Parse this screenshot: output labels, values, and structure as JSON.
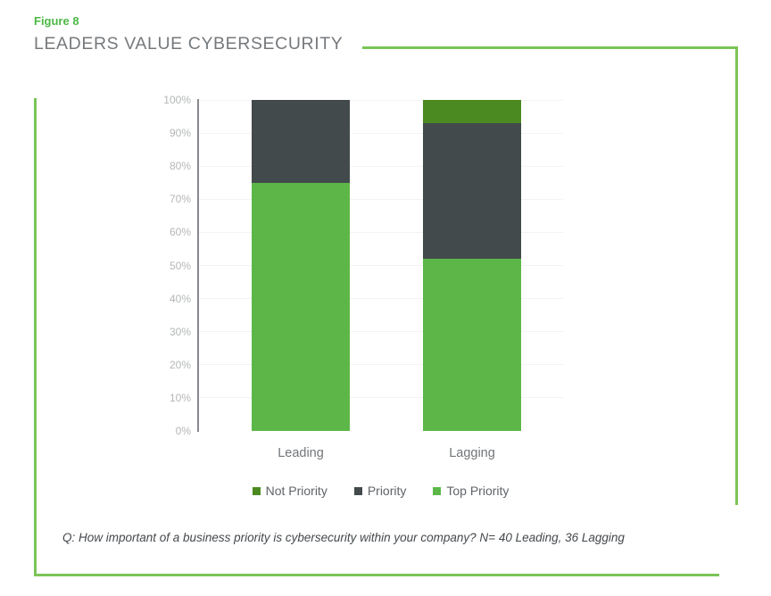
{
  "figure_label": "Figure 8",
  "title": "LEADERS VALUE CYBERSECURITY",
  "footer_note": "Q: How important of a business priority is cybersecurity within your company? N= 40 Leading, 36 Lagging",
  "colors": {
    "frame_green": "#7ac557",
    "figure_label_green": "#4cb845",
    "axis_gray": "#87898c"
  },
  "chart_data": {
    "type": "bar",
    "subtype": "stacked-vertical-100pct",
    "title": "LEADERS VALUE CYBERSECURITY",
    "categories": [
      "Leading",
      "Lagging"
    ],
    "series": [
      {
        "name": "Not Priority",
        "color": "#4b8a20",
        "values": [
          0,
          7
        ]
      },
      {
        "name": "Priority",
        "color": "#424a4b",
        "values": [
          25,
          41
        ]
      },
      {
        "name": "Top Priority",
        "color": "#5cb748",
        "values": [
          75,
          52
        ]
      }
    ],
    "stack_order_bottom_to_top": [
      "Top Priority",
      "Priority",
      "Not Priority"
    ],
    "ylim": [
      0,
      100
    ],
    "yticks": [
      "0%",
      "10%",
      "20%",
      "30%",
      "40%",
      "50%",
      "60%",
      "70%",
      "80%",
      "90%",
      "100%"
    ],
    "xlabel": "",
    "ylabel": "",
    "legend_position": "bottom",
    "grid": "horizontal-faint"
  }
}
